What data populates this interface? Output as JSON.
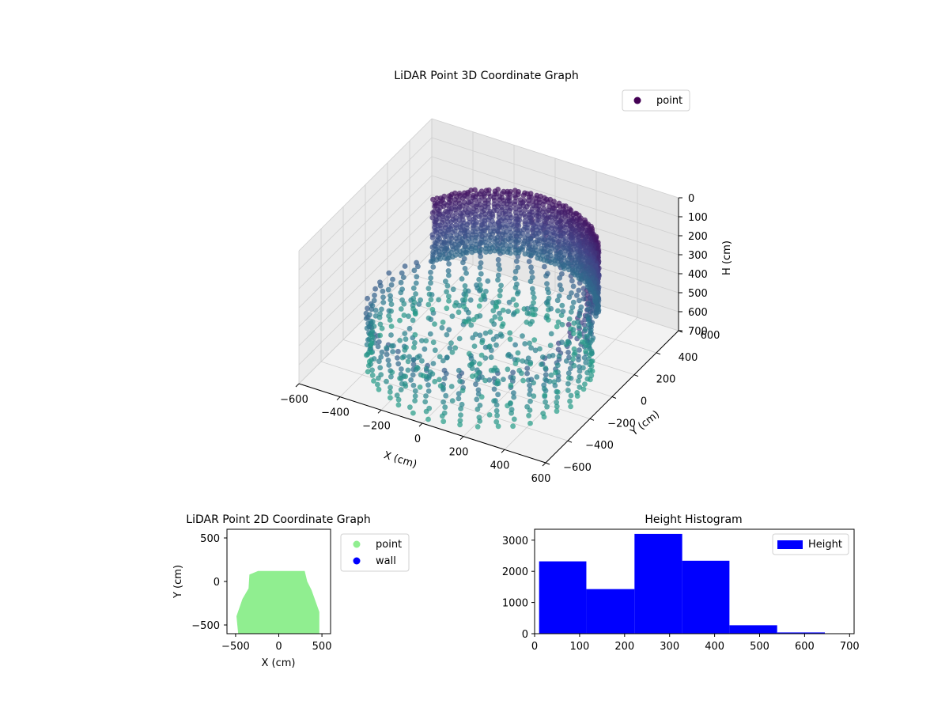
{
  "chart_data": [
    {
      "type": "scatter3d",
      "title": "LiDAR Point 3D Coordinate Graph",
      "xlabel": "X (cm)",
      "ylabel": "Y (cm)",
      "zlabel": "H (cm)",
      "xlim": [
        -600,
        600
      ],
      "ylim": [
        -600,
        600
      ],
      "zlim": [
        700,
        0
      ],
      "xticks": [
        "−600",
        "−400",
        "−200",
        "0",
        "200",
        "400",
        "600"
      ],
      "yticks": [
        "−600",
        "−400",
        "−200",
        "0",
        "200",
        "400",
        "600"
      ],
      "zticks": [
        "0",
        "100",
        "200",
        "300",
        "400",
        "500",
        "600",
        "700"
      ],
      "legend": [
        {
          "name": "point",
          "color": "#440154"
        }
      ],
      "legend_position": "top-right",
      "colormap": "viridis",
      "grid": true
    },
    {
      "type": "scatter",
      "title": "LiDAR Point 2D Coordinate Graph",
      "xlabel": "X (cm)",
      "ylabel": "Y (cm)",
      "xlim": [
        -600,
        600
      ],
      "ylim": [
        -600,
        600
      ],
      "xticks": [
        "−500",
        "0",
        "500"
      ],
      "yticks": [
        "500",
        "0",
        "−500"
      ],
      "series": [
        {
          "name": "point",
          "color": "#90ee90"
        },
        {
          "name": "wall",
          "color": "#0000ff"
        }
      ],
      "point_region_outline": [
        [
          -470,
          -600
        ],
        [
          -490,
          -400
        ],
        [
          -420,
          -200
        ],
        [
          -350,
          -80
        ],
        [
          -340,
          80
        ],
        [
          -240,
          120
        ],
        [
          300,
          120
        ],
        [
          330,
          0
        ],
        [
          380,
          -100
        ],
        [
          470,
          -350
        ],
        [
          470,
          -600
        ]
      ],
      "legend_position": "outside-right"
    },
    {
      "type": "bar",
      "title": "Height Histogram",
      "xlim": [
        0,
        710
      ],
      "ylim": [
        0,
        3350
      ],
      "xticks": [
        "0",
        "100",
        "200",
        "300",
        "400",
        "500",
        "600",
        "700"
      ],
      "yticks": [
        "0",
        "1000",
        "2000",
        "3000"
      ],
      "bins": [
        [
          10,
          115
        ],
        [
          115,
          222
        ],
        [
          222,
          328
        ],
        [
          328,
          433
        ],
        [
          433,
          539
        ],
        [
          539,
          645
        ]
      ],
      "series": [
        {
          "name": "Height",
          "values": [
            2320,
            1430,
            3200,
            2340,
            270,
            40
          ],
          "color": "#0000ff"
        }
      ],
      "legend_position": "top-right"
    }
  ]
}
